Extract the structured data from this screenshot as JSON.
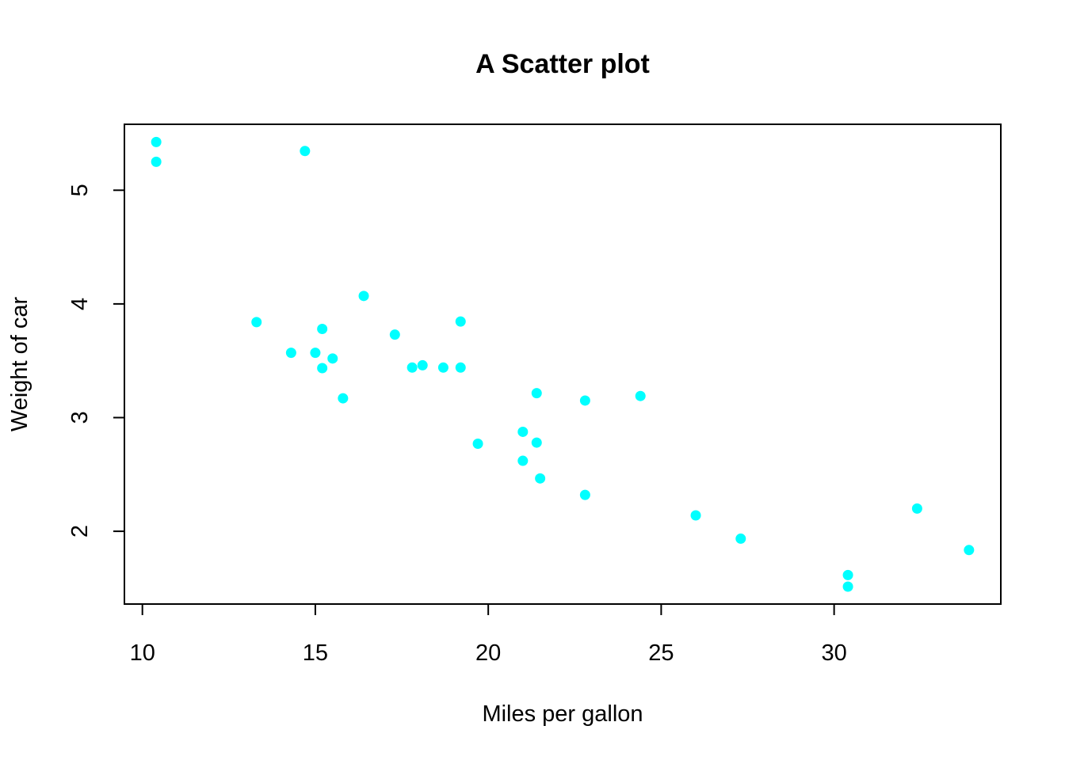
{
  "chart_data": {
    "type": "scatter",
    "title": "A Scatter plot",
    "xlabel": "Miles per gallon",
    "ylabel": "Weight of car",
    "xlim": [
      9.48,
      34.82
    ],
    "ylim": [
      1.36,
      5.58
    ],
    "xticks": [
      10,
      15,
      20,
      25,
      30
    ],
    "yticks": [
      2,
      3,
      4,
      5
    ],
    "grid": false,
    "point_color": "#00FFFF",
    "points": [
      {
        "x": 21.0,
        "y": 2.62
      },
      {
        "x": 21.0,
        "y": 2.875
      },
      {
        "x": 22.8,
        "y": 2.32
      },
      {
        "x": 21.4,
        "y": 3.215
      },
      {
        "x": 18.7,
        "y": 3.44
      },
      {
        "x": 18.1,
        "y": 3.46
      },
      {
        "x": 14.3,
        "y": 3.57
      },
      {
        "x": 24.4,
        "y": 3.19
      },
      {
        "x": 22.8,
        "y": 3.15
      },
      {
        "x": 19.2,
        "y": 3.44
      },
      {
        "x": 17.8,
        "y": 3.44
      },
      {
        "x": 16.4,
        "y": 4.07
      },
      {
        "x": 17.3,
        "y": 3.73
      },
      {
        "x": 15.2,
        "y": 3.78
      },
      {
        "x": 10.4,
        "y": 5.25
      },
      {
        "x": 10.4,
        "y": 5.424
      },
      {
        "x": 14.7,
        "y": 5.345
      },
      {
        "x": 32.4,
        "y": 2.2
      },
      {
        "x": 30.4,
        "y": 1.615
      },
      {
        "x": 33.9,
        "y": 1.835
      },
      {
        "x": 21.5,
        "y": 2.465
      },
      {
        "x": 15.5,
        "y": 3.52
      },
      {
        "x": 15.2,
        "y": 3.435
      },
      {
        "x": 13.3,
        "y": 3.84
      },
      {
        "x": 19.2,
        "y": 3.845
      },
      {
        "x": 27.3,
        "y": 1.935
      },
      {
        "x": 26.0,
        "y": 2.14
      },
      {
        "x": 30.4,
        "y": 1.513
      },
      {
        "x": 15.8,
        "y": 3.17
      },
      {
        "x": 19.7,
        "y": 2.77
      },
      {
        "x": 15.0,
        "y": 3.57
      },
      {
        "x": 21.4,
        "y": 2.78
      }
    ]
  }
}
